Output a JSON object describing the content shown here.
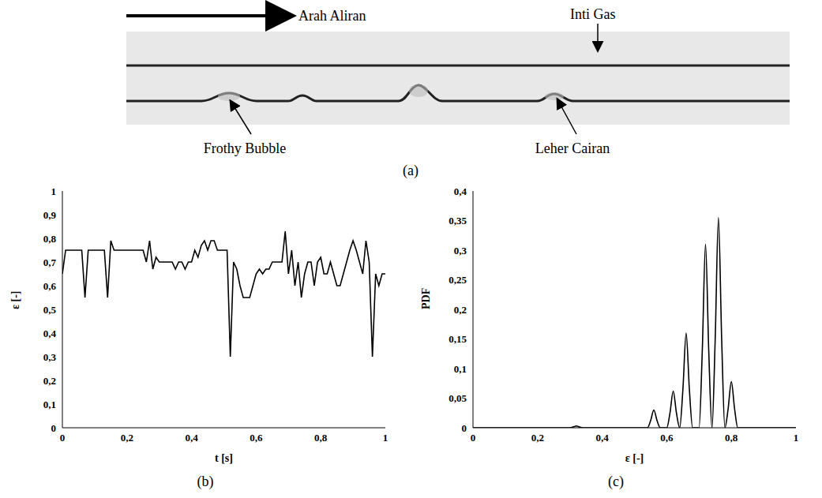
{
  "diagram": {
    "flow": "Arah Aliran",
    "core": "Inti Gas",
    "bubble": "Frothy Bubble",
    "neck": "Leher Cairan",
    "panel": "(a)"
  },
  "chart_data": [
    {
      "type": "line",
      "title": "(b)",
      "x_label": "t [s]",
      "y_label": "ε [-]",
      "color": "#000000",
      "xlim": [
        0,
        1
      ],
      "xticks": [
        0,
        {
          "value": 0.2,
          "label": "0,2"
        },
        {
          "value": 0.4,
          "label": "0,4"
        },
        {
          "value": 0.6,
          "label": "0,6"
        },
        {
          "value": 0.8,
          "label": "0,8"
        },
        1
      ],
      "ylim": [
        0,
        1
      ],
      "yticks": [
        0,
        {
          "value": 0.1,
          "label": "0,1"
        },
        {
          "value": 0.2,
          "label": "0,2"
        },
        {
          "value": 0.3,
          "label": "0,3"
        },
        {
          "value": 0.4,
          "label": "0,4"
        },
        {
          "value": 0.5,
          "label": "0,5"
        },
        {
          "value": 0.6,
          "label": "0,6"
        },
        {
          "value": 0.7,
          "label": "0,7"
        },
        {
          "value": 0.8,
          "label": "0,8"
        },
        {
          "value": 0.9,
          "label": "0,9"
        },
        1
      ],
      "grid": false,
      "x": [
        0,
        0.01,
        0.02,
        0.03,
        0.04,
        0.05,
        0.06,
        0.07,
        0.08,
        0.09,
        0.1,
        0.11,
        0.12,
        0.13,
        0.14,
        0.15,
        0.16,
        0.17,
        0.18,
        0.19,
        0.2,
        0.21,
        0.22,
        0.23,
        0.24,
        0.25,
        0.26,
        0.27,
        0.28,
        0.29,
        0.3,
        0.31,
        0.32,
        0.33,
        0.34,
        0.35,
        0.36,
        0.37,
        0.38,
        0.39,
        0.4,
        0.41,
        0.42,
        0.43,
        0.44,
        0.45,
        0.46,
        0.47,
        0.48,
        0.49,
        0.5,
        0.51,
        0.52,
        0.53,
        0.54,
        0.55,
        0.56,
        0.57,
        0.58,
        0.59,
        0.6,
        0.61,
        0.62,
        0.63,
        0.64,
        0.65,
        0.66,
        0.67,
        0.68,
        0.69,
        0.7,
        0.71,
        0.72,
        0.73,
        0.74,
        0.75,
        0.76,
        0.77,
        0.78,
        0.79,
        0.8,
        0.81,
        0.82,
        0.83,
        0.84,
        0.85,
        0.86,
        0.87,
        0.88,
        0.89,
        0.9,
        0.91,
        0.92,
        0.93,
        0.94,
        0.95,
        0.96,
        0.97,
        0.98,
        0.99,
        1
      ],
      "values": [
        0.65,
        0.75,
        0.75,
        0.75,
        0.75,
        0.75,
        0.75,
        0.55,
        0.75,
        0.75,
        0.75,
        0.75,
        0.75,
        0.75,
        0.55,
        0.79,
        0.75,
        0.75,
        0.75,
        0.75,
        0.75,
        0.75,
        0.75,
        0.75,
        0.75,
        0.75,
        0.7,
        0.79,
        0.67,
        0.72,
        0.7,
        0.7,
        0.7,
        0.7,
        0.7,
        0.67,
        0.7,
        0.7,
        0.67,
        0.7,
        0.7,
        0.75,
        0.72,
        0.77,
        0.79,
        0.75,
        0.79,
        0.79,
        0.75,
        0.75,
        0.75,
        0.75,
        0.3,
        0.7,
        0.67,
        0.6,
        0.55,
        0.55,
        0.55,
        0.6,
        0.65,
        0.67,
        0.65,
        0.67,
        0.67,
        0.7,
        0.7,
        0.7,
        0.7,
        0.83,
        0.65,
        0.75,
        0.6,
        0.7,
        0.55,
        0.65,
        0.7,
        0.7,
        0.6,
        0.7,
        0.72,
        0.65,
        0.65,
        0.7,
        0.65,
        0.6,
        0.6,
        0.65,
        0.7,
        0.75,
        0.79,
        0.75,
        0.7,
        0.65,
        0.79,
        0.7,
        0.3,
        0.65,
        0.6,
        0.65,
        0.65
      ]
    },
    {
      "type": "line",
      "title": "(c)",
      "x_label": "ε [-]",
      "y_label": "PDF",
      "color": "#000000",
      "xlim": [
        0,
        1
      ],
      "xticks": [
        0,
        {
          "value": 0.2,
          "label": "0,2"
        },
        {
          "value": 0.4,
          "label": "0,4"
        },
        {
          "value": 0.6,
          "label": "0,6"
        },
        {
          "value": 0.8,
          "label": "0,8"
        },
        1
      ],
      "ylim": [
        0,
        0.4
      ],
      "yticks": [
        0,
        {
          "value": 0.05,
          "label": "0,05"
        },
        {
          "value": 0.1,
          "label": "0,1"
        },
        {
          "value": 0.15,
          "label": "0,15"
        },
        {
          "value": 0.2,
          "label": "0,2"
        },
        {
          "value": 0.25,
          "label": "0,25"
        },
        {
          "value": 0.3,
          "label": "0,3"
        },
        {
          "value": 0.35,
          "label": "0,35"
        },
        {
          "value": 0.4,
          "label": "0,4"
        }
      ],
      "grid": false,
      "x": [
        0,
        0.3,
        0.31,
        0.32,
        0.33,
        0.34,
        0.53,
        0.54,
        0.55,
        0.56,
        0.57,
        0.58,
        0.59,
        0.6,
        0.61,
        0.62,
        0.63,
        0.64,
        0.65,
        0.66,
        0.67,
        0.68,
        0.69,
        0.7,
        0.71,
        0.72,
        0.73,
        0.74,
        0.75,
        0.76,
        0.77,
        0.78,
        0.79,
        0.8,
        0.81,
        0.82,
        0.83,
        1
      ],
      "values": [
        0,
        0,
        0.0012,
        0.003,
        0.0012,
        0,
        0,
        0,
        0.012,
        0.03,
        0.012,
        0,
        0,
        0,
        0.025,
        0.062,
        0.025,
        0,
        0.065,
        0.16,
        0.065,
        0,
        0,
        0,
        0.13,
        0.31,
        0.13,
        0,
        0.15,
        0.355,
        0.15,
        0,
        0.032,
        0.078,
        0.032,
        0,
        0,
        0
      ]
    }
  ]
}
